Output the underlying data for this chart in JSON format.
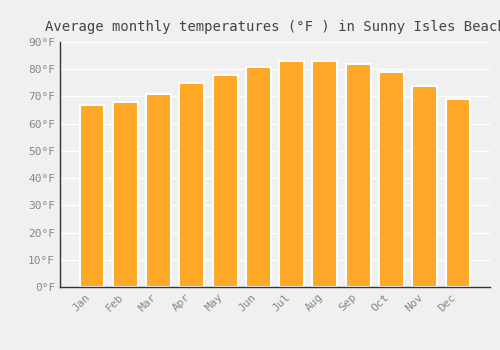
{
  "title": "Average monthly temperatures (°F ) in Sunny Isles Beach",
  "months": [
    "Jan",
    "Feb",
    "Mar",
    "Apr",
    "May",
    "Jun",
    "Jul",
    "Aug",
    "Sep",
    "Oct",
    "Nov",
    "Dec"
  ],
  "values": [
    67,
    68,
    71,
    75,
    78,
    81,
    83,
    83,
    82,
    79,
    74,
    69
  ],
  "bar_color": "#FFA726",
  "bar_edge_color": "#E8900A",
  "background_color": "#f0f0f0",
  "grid_color": "#ffffff",
  "ylim": [
    0,
    90
  ],
  "yticks": [
    0,
    10,
    20,
    30,
    40,
    50,
    60,
    70,
    80,
    90
  ],
  "title_fontsize": 10,
  "tick_fontsize": 8,
  "font_family": "monospace"
}
